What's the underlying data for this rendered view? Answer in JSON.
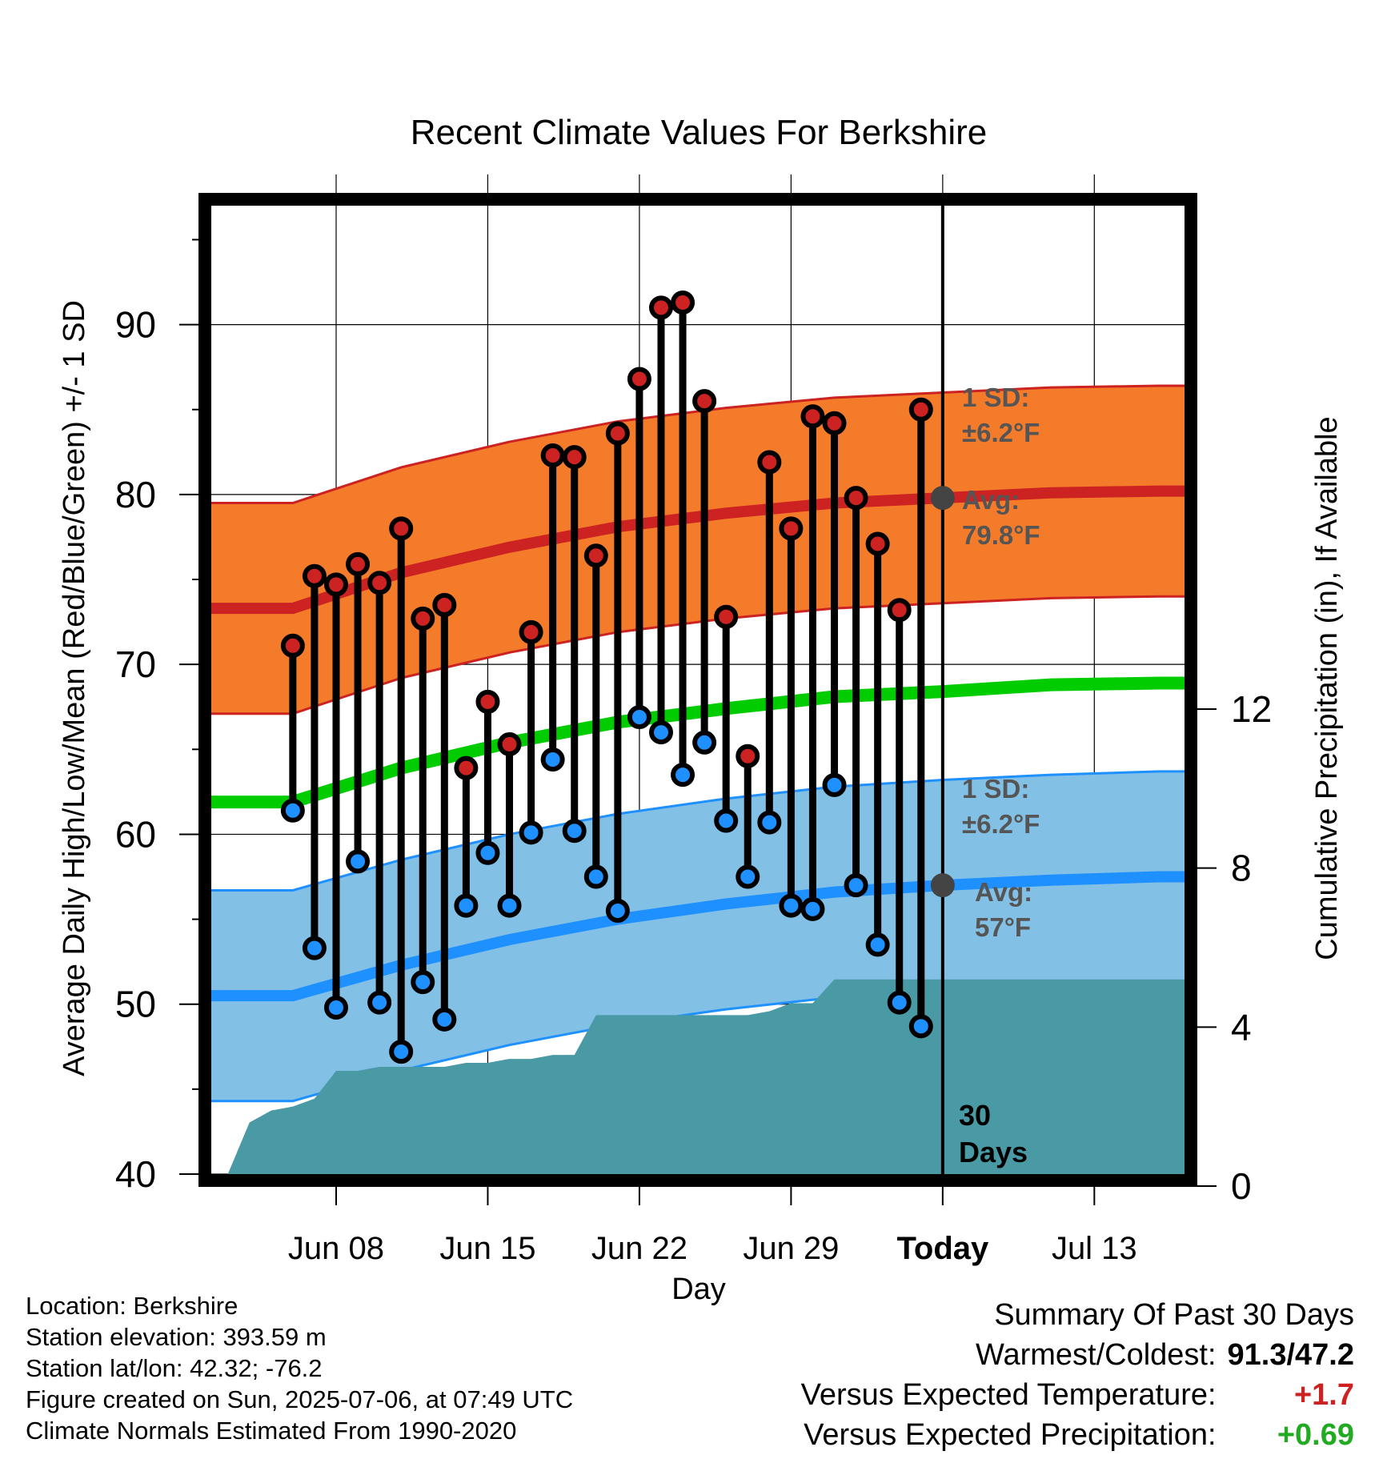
{
  "chart_data": {
    "type": "line",
    "title": "Recent Climate Values For Berkshire",
    "xlabel": "Day",
    "ylabel": "Average Daily High/Low/Mean (Red/Blue/Green) +/- 1 SD",
    "ylabel_right": "Cumulative Precipitation (in), If Available",
    "ylim": [
      40,
      97
    ],
    "ylim_right": [
      0,
      12
    ],
    "yticks": [
      "40",
      "50",
      "60",
      "70",
      "80",
      "90"
    ],
    "yticks_right": [
      "0",
      "4",
      "8",
      "12"
    ],
    "x_range_days": [
      -33.8,
      11.2
    ],
    "xticks": [
      {
        "day": -28,
        "label": "Jun 08"
      },
      {
        "day": -21,
        "label": "Jun 15"
      },
      {
        "day": -14,
        "label": "Jun 22"
      },
      {
        "day": -7,
        "label": "Jun 29"
      },
      {
        "day": 0,
        "label": "Today"
      },
      {
        "day": 7,
        "label": "Jul 13"
      }
    ],
    "days": [
      -30,
      -29,
      -28,
      -27,
      -26,
      -25,
      -24,
      -23,
      -22,
      -21,
      -20,
      -19,
      -18,
      -17,
      -16,
      -15,
      -14,
      -13,
      -12,
      -11,
      -10,
      -9,
      -8,
      -7,
      -6,
      -5,
      -4,
      -3,
      -2,
      -1
    ],
    "series": [
      {
        "name": "High",
        "color": "#cc2222",
        "values": [
          71.1,
          75.2,
          74.7,
          75.9,
          74.8,
          78,
          72.7,
          73.5,
          63.9,
          67.8,
          65.3,
          71.9,
          82.3,
          82.2,
          76.4,
          83.6,
          86.8,
          91,
          91.3,
          85.5,
          72.8,
          64.6,
          81.9,
          78,
          84.6,
          84.2,
          79.8,
          77.1,
          73.2,
          85
        ]
      },
      {
        "name": "Low",
        "color": "#1e90ff",
        "values": [
          61.4,
          53.3,
          49.8,
          58.4,
          50.1,
          47.2,
          51.3,
          49.1,
          55.8,
          58.9,
          55.8,
          60.1,
          64.4,
          60.2,
          57.5,
          55.5,
          66.9,
          66,
          63.5,
          65.4,
          60.8,
          57.5,
          60.7,
          55.8,
          55.6,
          62.9,
          57,
          53.5,
          50.1,
          48.7
        ]
      }
    ],
    "normals": {
      "days": [
        -30,
        -25,
        -20,
        -15,
        -10,
        -5,
        0,
        5,
        10
      ],
      "avg_high": [
        73.3,
        75.4,
        76.9,
        78.1,
        78.9,
        79.5,
        79.8,
        80.1,
        80.2
      ],
      "avg_low": [
        50.5,
        52.3,
        53.8,
        55,
        55.9,
        56.6,
        57,
        57.3,
        57.5
      ],
      "avg_mean": [
        61.9,
        63.9,
        65.4,
        66.6,
        67.4,
        68.1,
        68.4,
        68.8,
        68.9
      ],
      "sd": 6.2,
      "colors": {
        "high_band": "#f47b2a",
        "high_line": "#cc2222",
        "low_band": "#82c0e6",
        "low_line": "#1e90ff",
        "mean_line": "#00cc00"
      }
    },
    "precip": {
      "color": "#4a9aa5",
      "days": [
        -33.8,
        -33,
        -32,
        -31,
        -30,
        -29,
        -28,
        -27,
        -26,
        -25,
        -24,
        -23,
        -22,
        -21,
        -20,
        -19,
        -18,
        -17,
        -16,
        -15,
        -14,
        -13,
        -12,
        -11,
        -10,
        -9,
        -8,
        -7,
        -6,
        -5,
        -4,
        -3,
        -2,
        -1,
        0,
        11.2
      ],
      "cumulative": [
        0,
        0.3,
        1.6,
        1.9,
        2,
        2.2,
        2.9,
        2.9,
        3,
        3,
        3,
        3,
        3.1,
        3.1,
        3.2,
        3.2,
        3.3,
        3.3,
        4.3,
        4.3,
        4.3,
        4.3,
        4.3,
        4.3,
        4.3,
        4.3,
        4.4,
        4.6,
        4.6,
        5.2,
        5.2,
        5.2,
        5.2,
        5.2,
        5.2,
        5.2
      ]
    },
    "annotations": {
      "high_sd_label": "1 SD:",
      "high_sd_value": "±6.2°F",
      "high_avg_label": "Avg:",
      "high_avg_value": "79.8°F",
      "low_sd_label": "1 SD:",
      "low_sd_value": "±6.2°F",
      "low_avg_label": "Avg:",
      "low_avg_value": "57°F",
      "days_label_1": "30",
      "days_label_2": "Days"
    },
    "grid": true,
    "legend": "none"
  },
  "info": {
    "location": "Location: Berkshire",
    "elevation": "Station elevation: 393.59 m",
    "latlon": "Station lat/lon: 42.32; -76.2",
    "created": "Figure created on Sun, 2025-07-06, at 07:49 UTC",
    "normals": "Climate Normals Estimated From 1990-2020"
  },
  "summary": {
    "title": "Summary Of Past 30 Days",
    "warmest_label": "Warmest/Coldest:",
    "warmest_value": "91.3/47.2",
    "temp_label": "Versus Expected Temperature:",
    "temp_value": "+1.7",
    "temp_color": "#cc2222",
    "precip_label": "Versus Expected Precipitation:",
    "precip_value": "+0.69",
    "precip_color": "#22aa22"
  }
}
